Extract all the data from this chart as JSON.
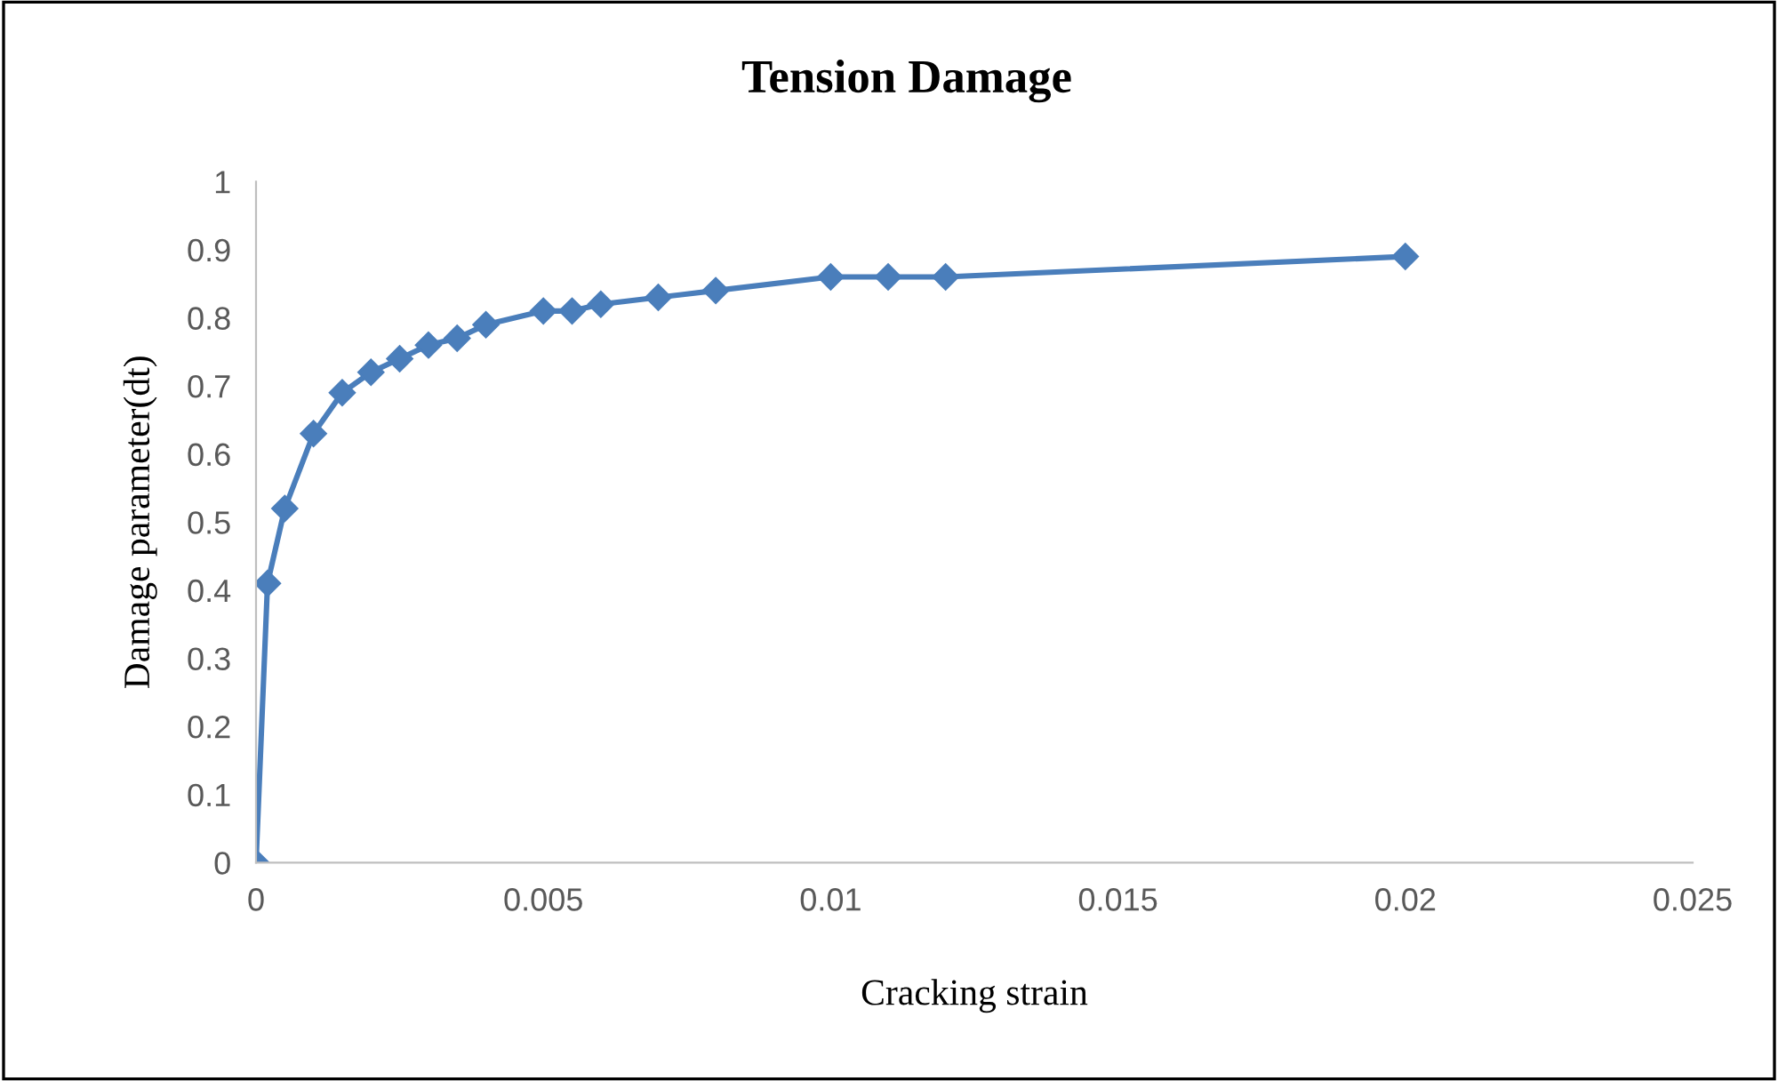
{
  "chart_data": {
    "type": "line",
    "title": "Tension Damage",
    "xlabel": "Cracking strain",
    "ylabel": "Damage parameter(dt)",
    "x": [
      0,
      0.0002,
      0.0005,
      0.001,
      0.0015,
      0.002,
      0.0025,
      0.003,
      0.0035,
      0.004,
      0.005,
      0.0055,
      0.006,
      0.007,
      0.008,
      0.01,
      0.011,
      0.012,
      0.02
    ],
    "series": [
      {
        "color": "#4a7ebb",
        "values": [
          0,
          0.41,
          0.52,
          0.63,
          0.69,
          0.72,
          0.74,
          0.76,
          0.77,
          0.79,
          0.81,
          0.81,
          0.82,
          0.83,
          0.84,
          0.86,
          0.86,
          0.86,
          0.89
        ]
      }
    ],
    "xlim": [
      0,
      0.025
    ],
    "xticks": [
      0,
      0.005,
      0.01,
      0.015,
      0.02,
      0.025
    ],
    "ylim": [
      0,
      1
    ],
    "yticks": [
      0,
      0.1,
      0.2,
      0.3,
      0.4,
      0.5,
      0.6,
      0.7,
      0.8,
      0.9,
      1
    ],
    "grid": false,
    "legend": false,
    "marker": "diamond",
    "line_style": "solid"
  }
}
